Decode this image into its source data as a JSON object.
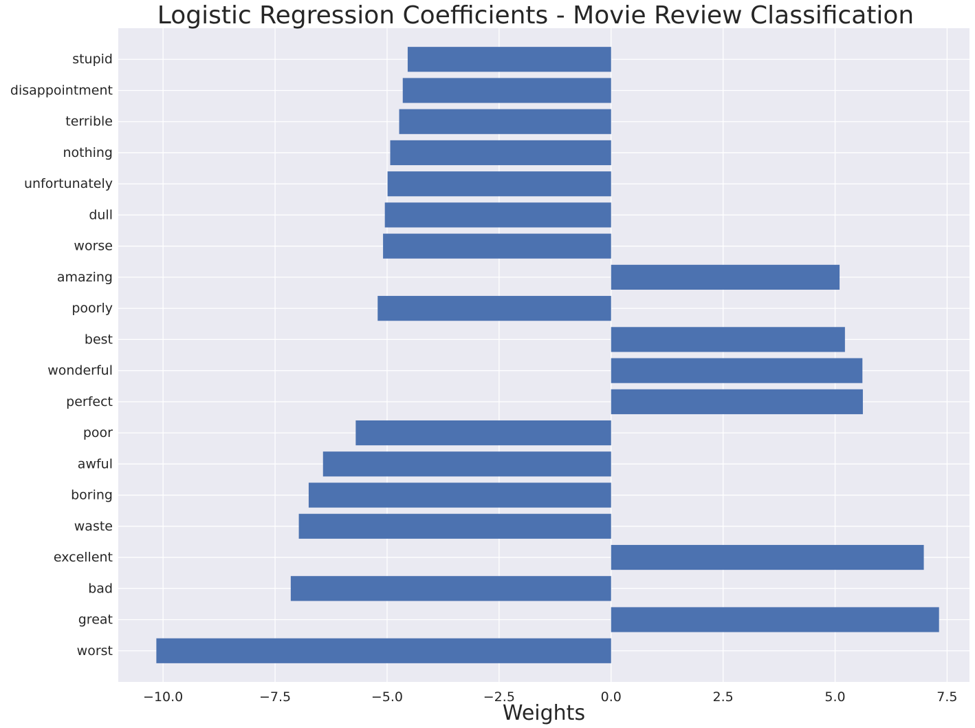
{
  "chart_data": {
    "type": "bar",
    "orientation": "horizontal",
    "title": "Logistic Regression Coefficients - Movie Review Classification",
    "xlabel": "Weights",
    "ylabel": "",
    "xlim": [
      -11.0,
      8.0
    ],
    "xticks": [
      -10.0,
      -7.5,
      -5.0,
      -2.5,
      0.0,
      2.5,
      5.0,
      7.5
    ],
    "xtick_labels": [
      "−10.0",
      "−7.5",
      "−5.0",
      "−2.5",
      "0.0",
      "2.5",
      "5.0",
      "7.5"
    ],
    "categories": [
      "worst",
      "great",
      "bad",
      "excellent",
      "waste",
      "boring",
      "awful",
      "poor",
      "perfect",
      "wonderful",
      "best",
      "poorly",
      "amazing",
      "worse",
      "dull",
      "unfortunately",
      "nothing",
      "terrible",
      "disappointment",
      "stupid"
    ],
    "values": [
      -10.15,
      7.32,
      -7.15,
      6.98,
      -6.97,
      -6.75,
      -6.43,
      -5.7,
      5.62,
      5.61,
      5.22,
      -5.21,
      5.1,
      -5.09,
      -5.05,
      -4.99,
      -4.93,
      -4.73,
      -4.65,
      -4.54
    ],
    "grid": true,
    "colors": {
      "bar": "#4c72b0",
      "background": "#eaeaf2",
      "grid": "#ffffff",
      "text": "#262626"
    }
  }
}
